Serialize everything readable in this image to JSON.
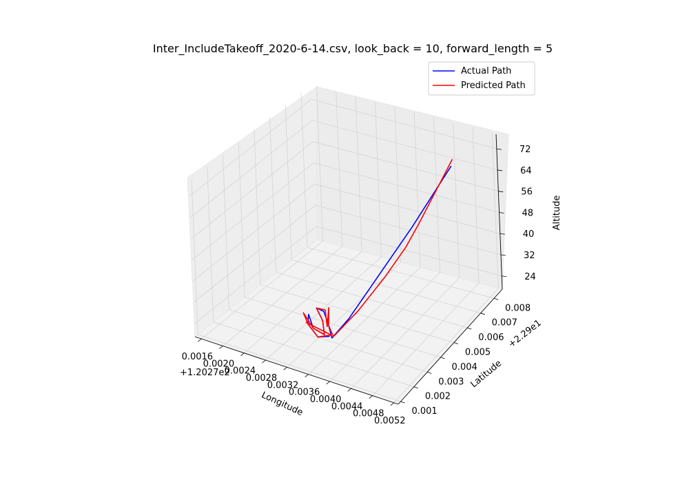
{
  "chart_data": {
    "type": "line",
    "title": "Inter_IncludeTakeoff_2020-6-14.csv, look_back = 10, forward_length = 5",
    "xlabel": "Longitude",
    "ylabel": "Latitude",
    "zlabel": "Altitude",
    "x_offset_label": "+1.2027e2",
    "y_offset_label": "+2.29e1",
    "x_ticks": [
      "0.0016",
      "0.0020",
      "0.0024",
      "0.0028",
      "0.0032",
      "0.0036",
      "0.0040",
      "0.0044",
      "0.0048",
      "0.0052"
    ],
    "y_ticks": [
      "0.001",
      "0.002",
      "0.003",
      "0.004",
      "0.005",
      "0.006",
      "0.007",
      "0.008"
    ],
    "z_ticks": [
      "24",
      "32",
      "40",
      "48",
      "56",
      "64",
      "72"
    ],
    "grid": true,
    "legend_position": "upper right",
    "series": [
      {
        "name": "Actual Path",
        "color": "#0000ff",
        "points": [
          {
            "lon": 0.0048,
            "lat": 0.007,
            "alt": 72
          },
          {
            "lon": 0.0044,
            "lat": 0.0055,
            "alt": 55
          },
          {
            "lon": 0.0038,
            "lat": 0.003,
            "alt": 30
          },
          {
            "lon": 0.0036,
            "lat": 0.0025,
            "alt": 24
          },
          {
            "lon": 0.0034,
            "lat": 0.003,
            "alt": 25
          },
          {
            "lon": 0.0033,
            "lat": 0.0032,
            "alt": 26
          },
          {
            "lon": 0.0035,
            "lat": 0.0028,
            "alt": 24
          },
          {
            "lon": 0.0032,
            "lat": 0.0034,
            "alt": 27
          },
          {
            "lon": 0.003,
            "lat": 0.0036,
            "alt": 26
          },
          {
            "lon": 0.0032,
            "lat": 0.0033,
            "alt": 24
          },
          {
            "lon": 0.0034,
            "lat": 0.0027,
            "alt": 23
          },
          {
            "lon": 0.0031,
            "lat": 0.003,
            "alt": 22
          },
          {
            "lon": 0.0029,
            "lat": 0.0034,
            "alt": 24
          },
          {
            "lon": 0.003,
            "lat": 0.003,
            "alt": 23
          },
          {
            "lon": 0.0033,
            "lat": 0.0026,
            "alt": 22
          },
          {
            "lon": 0.0035,
            "lat": 0.0027,
            "alt": 23
          }
        ]
      },
      {
        "name": "Predicted Path",
        "color": "#ff0000",
        "points": [
          {
            "lon": 0.0048,
            "lat": 0.0071,
            "alt": 74
          },
          {
            "lon": 0.0045,
            "lat": 0.0056,
            "alt": 56
          },
          {
            "lon": 0.0044,
            "lat": 0.005,
            "alt": 50
          },
          {
            "lon": 0.0042,
            "lat": 0.0042,
            "alt": 42
          },
          {
            "lon": 0.0039,
            "lat": 0.0033,
            "alt": 32
          },
          {
            "lon": 0.0036,
            "lat": 0.0026,
            "alt": 24
          },
          {
            "lon": 0.0034,
            "lat": 0.003,
            "alt": 25
          },
          {
            "lon": 0.0033,
            "lat": 0.0034,
            "alt": 29
          },
          {
            "lon": 0.0034,
            "lat": 0.0029,
            "alt": 25
          },
          {
            "lon": 0.0032,
            "lat": 0.0035,
            "alt": 27
          },
          {
            "lon": 0.003,
            "lat": 0.0036,
            "alt": 26
          },
          {
            "lon": 0.0032,
            "lat": 0.0033,
            "alt": 24
          },
          {
            "lon": 0.0034,
            "lat": 0.0027,
            "alt": 23
          },
          {
            "lon": 0.0031,
            "lat": 0.003,
            "alt": 22
          },
          {
            "lon": 0.0028,
            "lat": 0.0034,
            "alt": 24
          },
          {
            "lon": 0.003,
            "lat": 0.003,
            "alt": 23
          },
          {
            "lon": 0.0033,
            "lat": 0.0026,
            "alt": 22
          },
          {
            "lon": 0.0035,
            "lat": 0.0028,
            "alt": 23
          },
          {
            "lon": 0.0029,
            "lat": 0.0032,
            "alt": 22
          }
        ]
      }
    ]
  }
}
